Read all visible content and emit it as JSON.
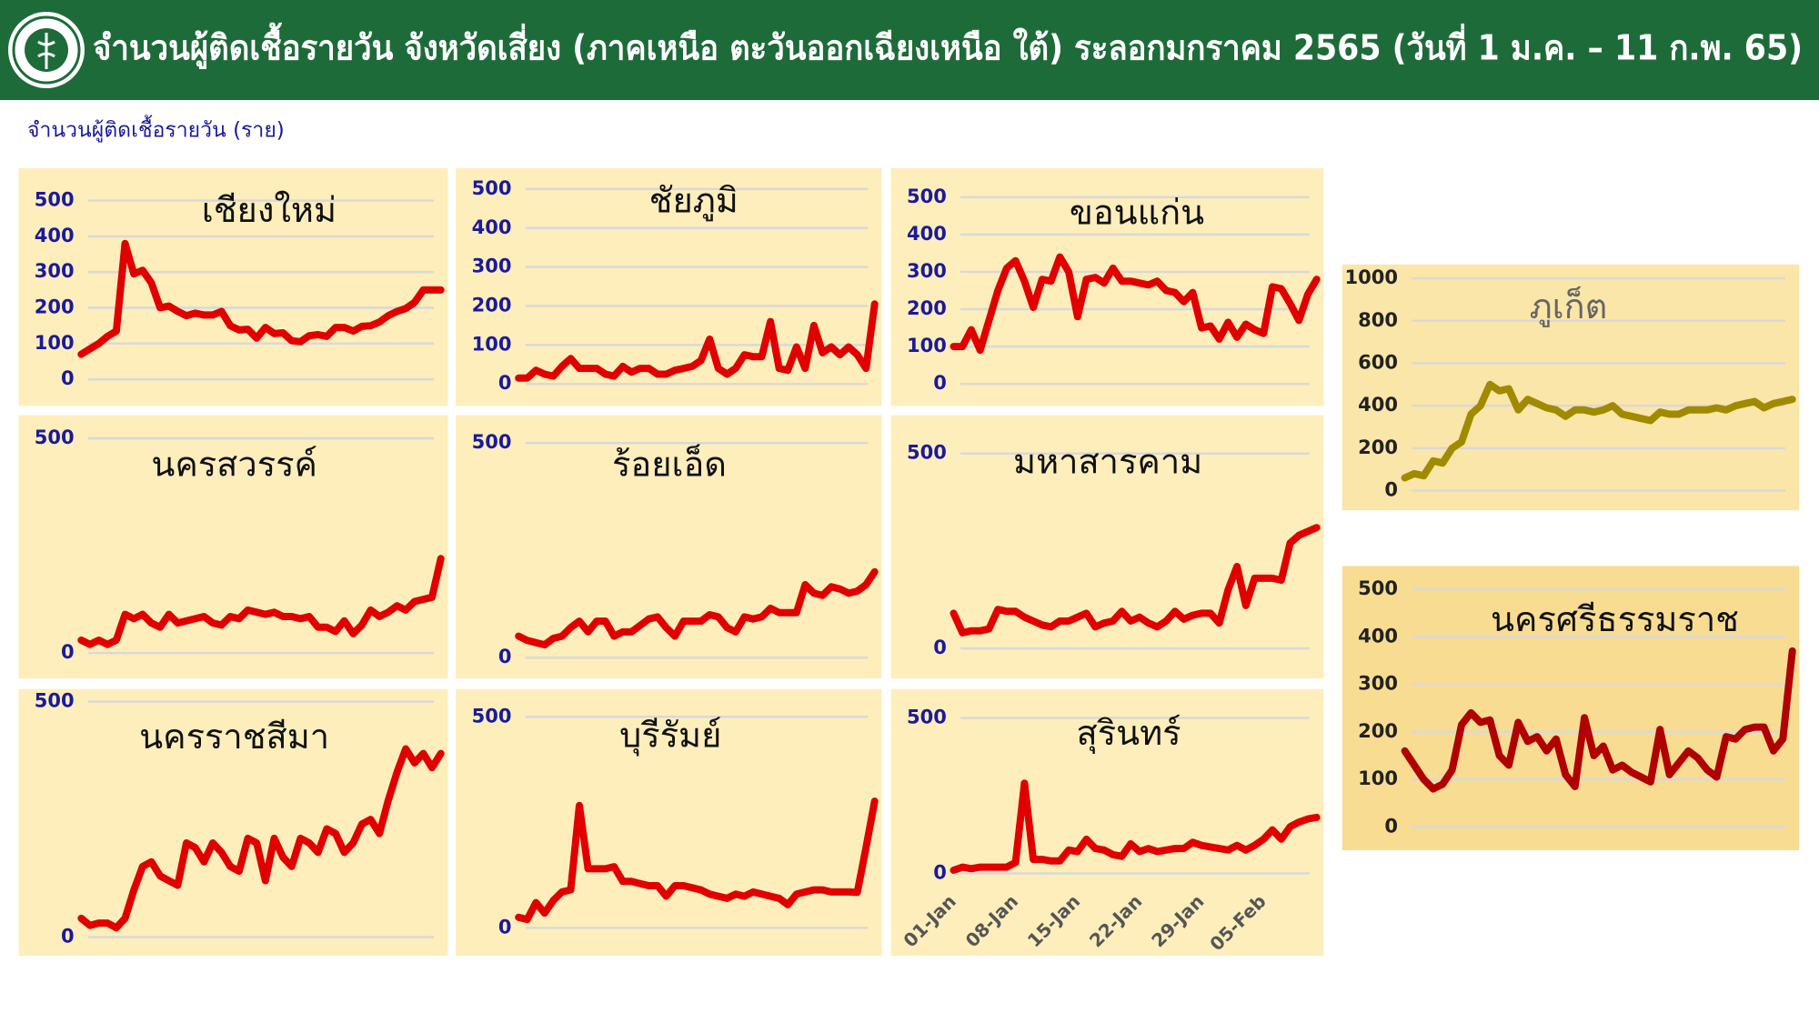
{
  "header": {
    "title": "จำนวนผู้ติดเชื้อรายวัน จังหวัดเสี่ยง (ภาคเหนือ ตะวันออกเฉียงเหนือ ใต้) ระลอกมกราคม 2565 (วันที่ 1 ม.ค. – 11 ก.พ. 65)"
  },
  "subtitle": "จำนวนผู้ติดเชื้อรายวัน (ราย)",
  "chart_data": [
    {
      "type": "line",
      "title": "เชียงใหม่",
      "color": "#e00000",
      "ylim": [
        0,
        500
      ],
      "yticks": [
        0,
        100,
        200,
        300,
        400,
        500
      ],
      "grid": true,
      "values": [
        70,
        85,
        100,
        120,
        135,
        380,
        295,
        305,
        270,
        200,
        205,
        190,
        178,
        185,
        180,
        180,
        190,
        150,
        138,
        140,
        115,
        145,
        128,
        130,
        108,
        105,
        122,
        125,
        120,
        145,
        145,
        135,
        148,
        150,
        160,
        178,
        190,
        198,
        215,
        250,
        250,
        250
      ]
    },
    {
      "type": "line",
      "title": "ชัยภูมิ",
      "color": "#e00000",
      "ylim": [
        0,
        500
      ],
      "yticks": [
        0,
        100,
        200,
        300,
        400,
        500
      ],
      "grid": true,
      "values": [
        15,
        15,
        35,
        25,
        20,
        45,
        65,
        40,
        40,
        40,
        25,
        20,
        45,
        30,
        40,
        40,
        25,
        25,
        35,
        40,
        45,
        60,
        115,
        40,
        25,
        40,
        75,
        70,
        70,
        160,
        40,
        35,
        95,
        40,
        150,
        80,
        95,
        75,
        95,
        75,
        40,
        205
      ]
    },
    {
      "type": "line",
      "title": "ขอนแก่น",
      "color": "#e00000",
      "ylim": [
        0,
        500
      ],
      "yticks": [
        0,
        100,
        200,
        300,
        400,
        500
      ],
      "grid": true,
      "values": [
        100,
        100,
        145,
        90,
        170,
        250,
        310,
        330,
        275,
        205,
        280,
        275,
        340,
        300,
        180,
        280,
        285,
        270,
        310,
        275,
        275,
        270,
        265,
        275,
        250,
        245,
        220,
        245,
        150,
        155,
        120,
        165,
        125,
        160,
        145,
        135,
        260,
        255,
        215,
        170,
        240,
        280
      ]
    },
    {
      "type": "line",
      "title": "ภูเก็ต",
      "color": "#a08a00",
      "ylim": [
        0,
        1000
      ],
      "yticks": [
        0,
        200,
        400,
        600,
        800,
        1000
      ],
      "grid": true,
      "values": [
        60,
        80,
        70,
        140,
        130,
        200,
        230,
        360,
        400,
        500,
        470,
        480,
        380,
        430,
        410,
        390,
        380,
        350,
        380,
        380,
        370,
        380,
        400,
        360,
        350,
        340,
        330,
        370,
        360,
        360,
        380,
        380,
        380,
        390,
        380,
        400,
        410,
        420,
        390,
        410,
        420,
        430
      ]
    },
    {
      "type": "line",
      "title": "นครสวรรค์",
      "color": "#e00000",
      "ylim": [
        0,
        500
      ],
      "yticks": [
        0,
        500
      ],
      "grid": true,
      "values": [
        30,
        20,
        30,
        20,
        30,
        90,
        80,
        90,
        70,
        60,
        90,
        70,
        75,
        80,
        85,
        70,
        65,
        85,
        80,
        100,
        95,
        90,
        95,
        85,
        85,
        80,
        85,
        60,
        60,
        50,
        75,
        45,
        65,
        100,
        85,
        95,
        110,
        100,
        120,
        125,
        130,
        220
      ]
    },
    {
      "type": "line",
      "title": "ร้อยเอ็ด",
      "color": "#e00000",
      "ylim": [
        0,
        500
      ],
      "yticks": [
        0,
        500
      ],
      "grid": true,
      "values": [
        50,
        40,
        35,
        30,
        45,
        50,
        70,
        85,
        60,
        85,
        85,
        50,
        60,
        60,
        75,
        90,
        95,
        70,
        50,
        85,
        85,
        85,
        100,
        95,
        70,
        60,
        95,
        90,
        95,
        115,
        105,
        105,
        105,
        170,
        150,
        145,
        165,
        160,
        150,
        155,
        170,
        200
      ]
    },
    {
      "type": "line",
      "title": "มหาสารคาม",
      "color": "#e00000",
      "ylim": [
        0,
        500
      ],
      "yticks": [
        0,
        500
      ],
      "grid": true,
      "values": [
        90,
        40,
        45,
        45,
        50,
        100,
        95,
        95,
        80,
        70,
        60,
        55,
        70,
        70,
        80,
        90,
        55,
        65,
        70,
        95,
        70,
        80,
        65,
        55,
        70,
        95,
        75,
        85,
        90,
        90,
        65,
        150,
        210,
        110,
        180,
        180,
        180,
        175,
        270,
        290,
        300,
        310
      ]
    },
    {
      "type": "line",
      "title": "นครศรีธรรมราช",
      "color": "#b00000",
      "ylim": [
        0,
        500
      ],
      "yticks": [
        0,
        100,
        200,
        300,
        400,
        500
      ],
      "grid": true,
      "values": [
        160,
        130,
        100,
        80,
        90,
        120,
        215,
        240,
        220,
        225,
        150,
        130,
        220,
        180,
        190,
        160,
        185,
        110,
        85,
        230,
        150,
        170,
        120,
        130,
        115,
        105,
        95,
        205,
        110,
        135,
        160,
        145,
        120,
        105,
        190,
        185,
        205,
        210,
        210,
        160,
        185,
        370
      ]
    },
    {
      "type": "line",
      "title": "นครราชสีมา",
      "color": "#e00000",
      "ylim": [
        0,
        500
      ],
      "yticks": [
        0,
        500
      ],
      "grid": true,
      "values": [
        40,
        25,
        30,
        30,
        20,
        40,
        100,
        150,
        160,
        130,
        120,
        110,
        200,
        190,
        160,
        200,
        180,
        150,
        140,
        210,
        200,
        120,
        210,
        170,
        150,
        210,
        200,
        180,
        230,
        220,
        180,
        200,
        240,
        250,
        220,
        290,
        350,
        400,
        370,
        390,
        360,
        390
      ]
    },
    {
      "type": "line",
      "title": "บุรีรัมย์",
      "color": "#e00000",
      "ylim": [
        0,
        500
      ],
      "yticks": [
        0,
        500
      ],
      "grid": true,
      "values": [
        25,
        20,
        60,
        35,
        65,
        85,
        90,
        290,
        140,
        140,
        140,
        145,
        110,
        110,
        105,
        100,
        100,
        75,
        100,
        100,
        95,
        90,
        80,
        75,
        70,
        80,
        75,
        85,
        80,
        75,
        70,
        55,
        80,
        85,
        90,
        90,
        85,
        85,
        85,
        84,
        190,
        300
      ]
    },
    {
      "type": "line",
      "title": "สุรินทร์",
      "color": "#e00000",
      "ylim": [
        0,
        500
      ],
      "yticks": [
        0,
        500
      ],
      "grid": true,
      "categories": [
        "01-Jan",
        null,
        null,
        null,
        null,
        null,
        null,
        "08-Jan",
        null,
        null,
        null,
        null,
        null,
        null,
        "15-Jan",
        null,
        null,
        null,
        null,
        null,
        null,
        "22-Jan",
        null,
        null,
        null,
        null,
        null,
        null,
        "29-Jan",
        null,
        null,
        null,
        null,
        null,
        null,
        "05-Feb",
        null,
        null,
        null,
        null,
        null,
        null
      ],
      "values": [
        10,
        20,
        15,
        20,
        20,
        20,
        20,
        35,
        290,
        45,
        45,
        40,
        40,
        75,
        70,
        110,
        80,
        75,
        60,
        55,
        95,
        70,
        80,
        70,
        75,
        80,
        80,
        100,
        90,
        85,
        80,
        75,
        90,
        75,
        90,
        110,
        140,
        110,
        150,
        165,
        175,
        180
      ]
    }
  ]
}
